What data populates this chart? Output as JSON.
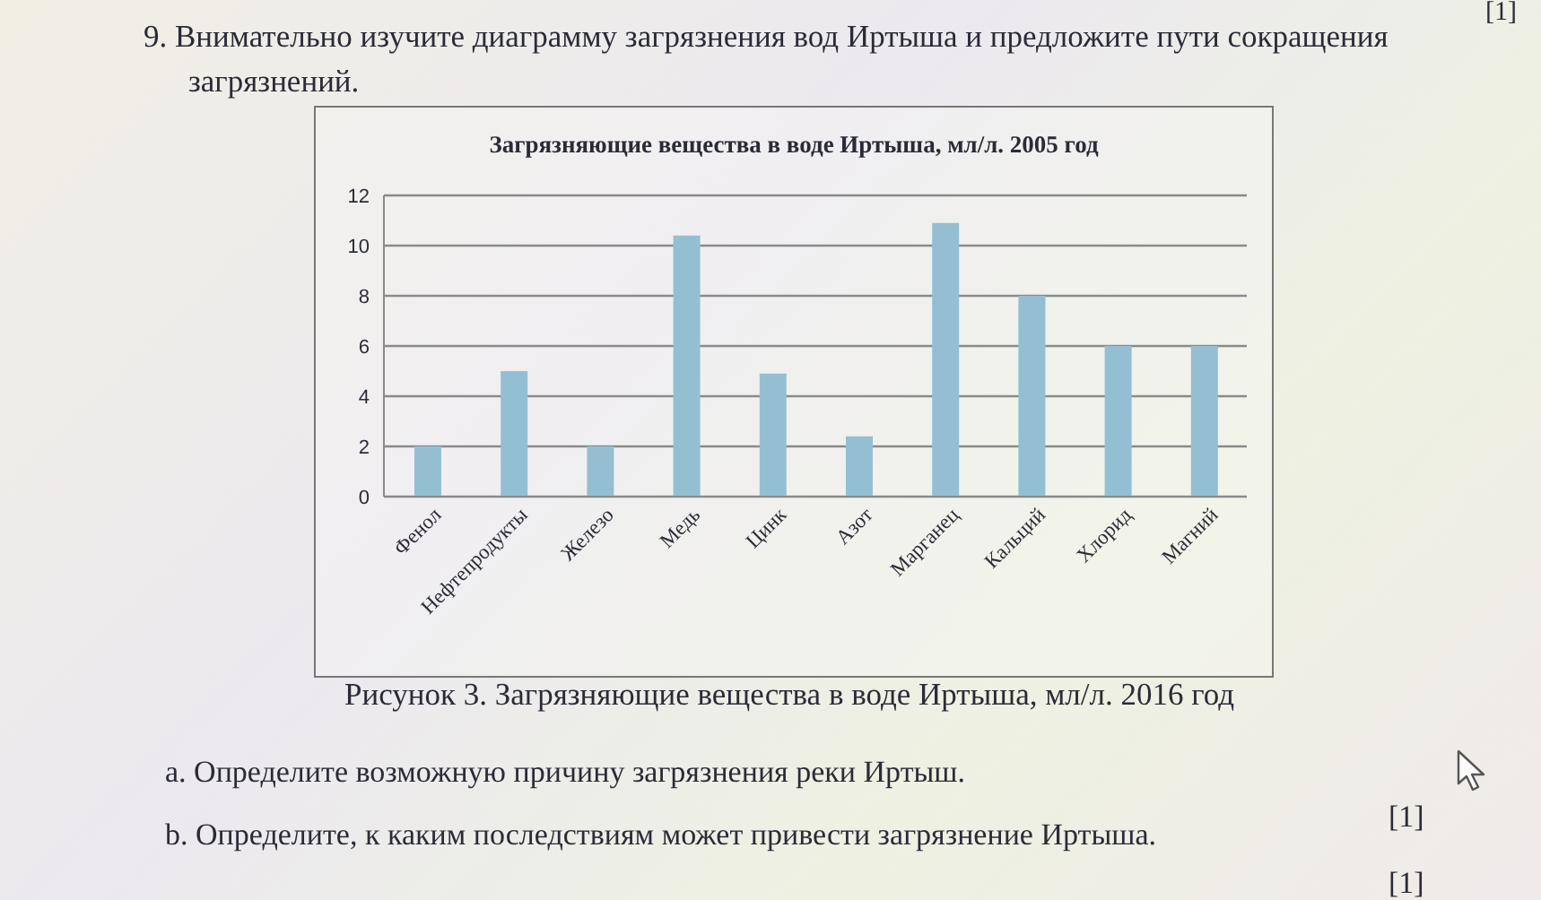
{
  "chart_data": {
    "type": "bar",
    "title": "Загрязняющие вещества в воде Иртыша, мл/л. 2005 год",
    "categories": [
      "Фенол",
      "Нефтепродукты",
      "Железо",
      "Медь",
      "Цинк",
      "Азот",
      "Марганец",
      "Кальций",
      "Хлорид",
      "Магний"
    ],
    "values": [
      2,
      5,
      2,
      10.4,
      4.9,
      2.4,
      10.9,
      8,
      6,
      6
    ],
    "color": "#94bfd3",
    "ylim": [
      0,
      12
    ],
    "yticks": [
      0,
      2,
      4,
      6,
      8,
      10,
      12
    ],
    "grid": "y",
    "annotations": [
      "9. Внимательно изучите диаграмму загрязнения вод Иртыша и предложите пути сокращения загрязнений.",
      "Рисунок 3. Загрязняющие вещества в воде Иртыша, мл/л. 2016 год",
      "a. Определите возможную причину загрязнения реки Иртыш.",
      "b. Определите, к каким последствиям может привести загрязнение Иртыша.",
      "[1]",
      "[1]",
      "[1]"
    ]
  }
}
